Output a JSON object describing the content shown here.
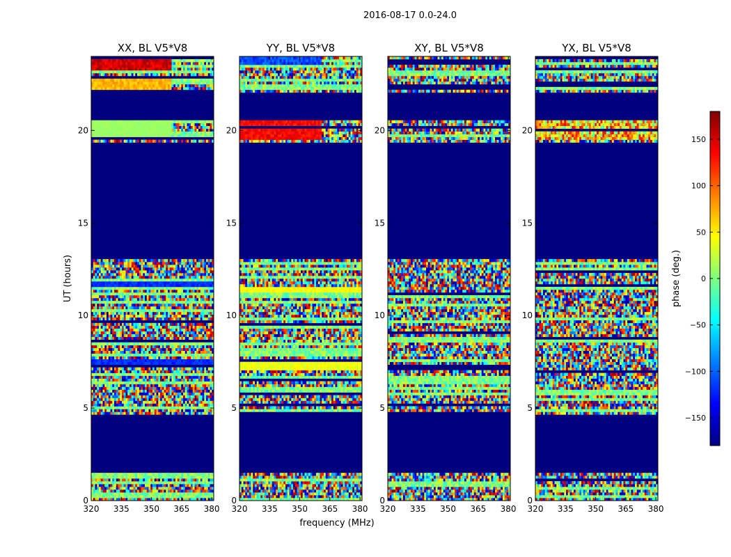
{
  "chart_data": {
    "type": "heatmap",
    "suptitle": "2016-08-17 0.0-24.0",
    "xlabel": "frequency (MHz)",
    "ylabel": "UT (hours)",
    "xlim": [
      320,
      381
    ],
    "ylim": [
      0,
      24
    ],
    "xticks": [
      320,
      335,
      350,
      365,
      380
    ],
    "yticks": [
      0,
      5,
      10,
      15,
      20
    ],
    "colorbar": {
      "label": "phase (deg.)",
      "range": [
        -180,
        180
      ],
      "ticks": [
        -150,
        -100,
        -50,
        0,
        50,
        100,
        150
      ],
      "colormap": "jet",
      "stops": [
        "#00007f",
        "#0000ff",
        "#00ffff",
        "#7fff7f",
        "#ffff00",
        "#ff0000",
        "#7f0000"
      ]
    },
    "flagged_color": "#00007f",
    "flagged_hours": [
      [
        1.5,
        4.6
      ],
      [
        13.0,
        19.3
      ],
      [
        20.5,
        22.0
      ]
    ],
    "panels": [
      {
        "title": "XX, BL V5*V8",
        "bands": [
          {
            "y": [
              19.5,
              20.5
            ],
            "x": [
              320,
              360
            ],
            "phase": 10,
            "noise": 4
          },
          {
            "y": [
              23.2,
              24.0
            ],
            "x": [
              320,
              360
            ],
            "phase": 150,
            "noise": 20
          },
          {
            "y": [
              22.2,
              22.9
            ],
            "x": [
              320,
              360
            ],
            "phase": 70,
            "noise": 15
          },
          {
            "y": [
              11.5,
              11.9
            ],
            "x": [
              320,
              381
            ],
            "phase": -120,
            "noise": 12
          },
          {
            "y": [
              7.3,
              7.6
            ],
            "x": [
              320,
              381
            ],
            "phase": -120,
            "noise": 12
          }
        ]
      },
      {
        "title": "YY, BL V5*V8",
        "bands": [
          {
            "y": [
              19.5,
              20.5
            ],
            "x": [
              320,
              361
            ],
            "phase": 135,
            "noise": 15
          },
          {
            "y": [
              23.5,
              24.0
            ],
            "x": [
              320,
              361
            ],
            "phase": -110,
            "noise": 20
          },
          {
            "y": [
              11.2,
              11.5
            ],
            "x": [
              320,
              381
            ],
            "phase": 45,
            "noise": 8
          },
          {
            "y": [
              7.1,
              7.5
            ],
            "x": [
              320,
              381
            ],
            "phase": 40,
            "noise": 10
          }
        ]
      },
      {
        "title": "XY, BL V5*V8",
        "bands": []
      },
      {
        "title": "YX, BL V5*V8",
        "bands": [
          {
            "y": [
              19.5,
              20.5
            ],
            "x": [
              320,
              381
            ],
            "phase": 60,
            "noise": 80
          }
        ]
      }
    ]
  }
}
